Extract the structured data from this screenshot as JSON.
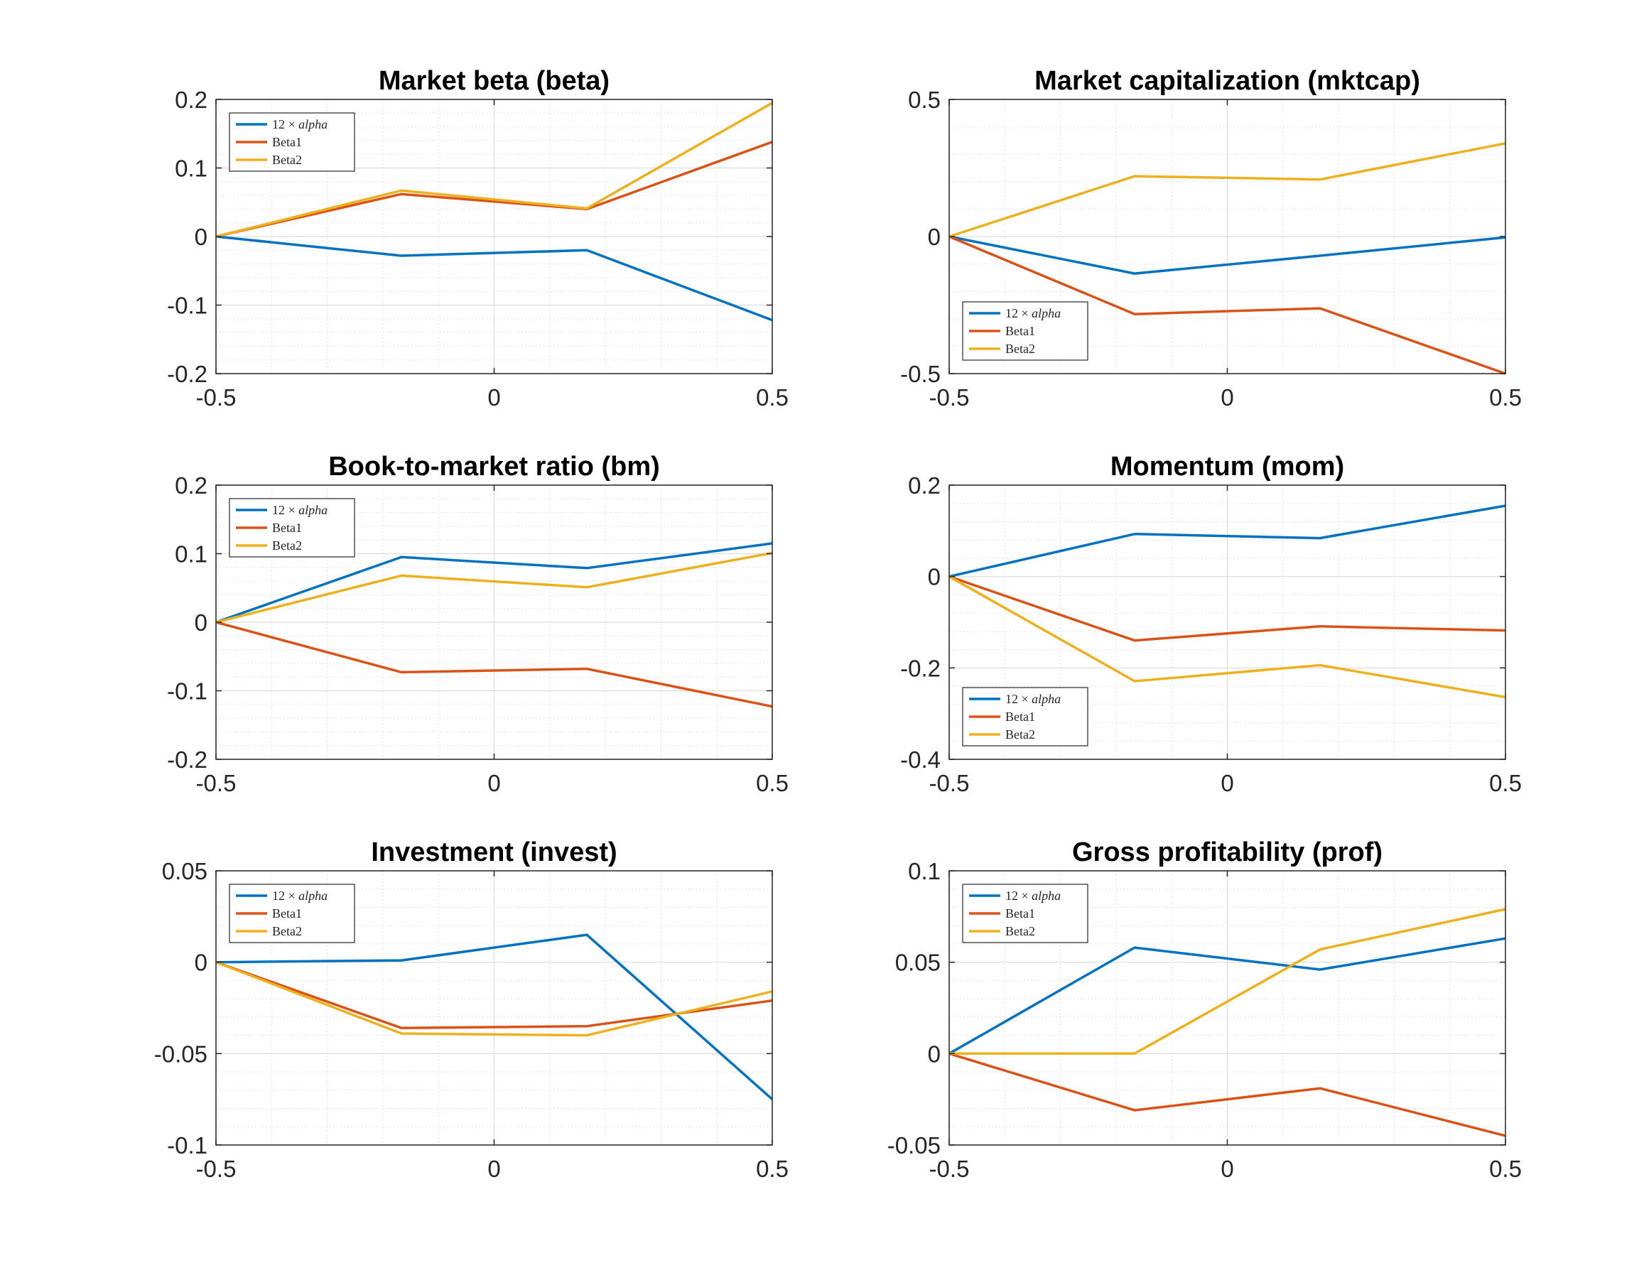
{
  "colors": {
    "alpha": "#0072BD",
    "beta1": "#D95319",
    "beta2": "#EDB120"
  },
  "legend": {
    "entries": [
      {
        "prefix": "12 × ",
        "italic": "alpha",
        "key": "alpha"
      },
      {
        "prefix": "Beta1",
        "italic": "",
        "key": "beta1"
      },
      {
        "prefix": "Beta2",
        "italic": "",
        "key": "beta2"
      }
    ]
  },
  "chart_data": [
    {
      "type": "line",
      "title": "Market beta (beta)",
      "x": [
        -0.5,
        -0.1667,
        0.1667,
        0.5
      ],
      "xlim": [
        -0.5,
        0.5
      ],
      "xticks": [
        -0.5,
        0,
        0.5
      ],
      "xtick_labels": [
        "-0.5",
        "0",
        "0.5"
      ],
      "ylim": [
        -0.2,
        0.2
      ],
      "yticks": [
        -0.2,
        -0.1,
        0,
        0.1,
        0.2
      ],
      "ytick_labels": [
        "-0.2",
        "-0.1",
        "0",
        "0.1",
        "0.2"
      ],
      "legend_position": "top-left",
      "grid": true,
      "series": [
        {
          "name": "12 × alpha",
          "key": "alpha",
          "values": [
            0,
            -0.028,
            -0.02,
            -0.122
          ]
        },
        {
          "name": "Beta1",
          "key": "beta1",
          "values": [
            0,
            0.062,
            0.04,
            0.138
          ]
        },
        {
          "name": "Beta2",
          "key": "beta2",
          "values": [
            0,
            0.067,
            0.041,
            0.195
          ]
        }
      ]
    },
    {
      "type": "line",
      "title": "Market capitalization (mktcap)",
      "x": [
        -0.5,
        -0.1667,
        0.1667,
        0.5
      ],
      "xlim": [
        -0.5,
        0.5
      ],
      "xticks": [
        -0.5,
        0,
        0.5
      ],
      "xtick_labels": [
        "-0.5",
        "0",
        "0.5"
      ],
      "ylim": [
        -0.5,
        0.5
      ],
      "yticks": [
        -0.5,
        0,
        0.5
      ],
      "ytick_labels": [
        "-0.5",
        "0",
        "0.5"
      ],
      "legend_position": "bottom-left",
      "grid": true,
      "series": [
        {
          "name": "12 × alpha",
          "key": "alpha",
          "values": [
            0,
            -0.135,
            -0.07,
            -0.003
          ]
        },
        {
          "name": "Beta1",
          "key": "beta1",
          "values": [
            0,
            -0.283,
            -0.262,
            -0.5
          ]
        },
        {
          "name": "Beta2",
          "key": "beta2",
          "values": [
            0,
            0.22,
            0.208,
            0.34
          ]
        }
      ]
    },
    {
      "type": "line",
      "title": "Book-to-market ratio (bm)",
      "x": [
        -0.5,
        -0.1667,
        0.1667,
        0.5
      ],
      "xlim": [
        -0.5,
        0.5
      ],
      "xticks": [
        -0.5,
        0,
        0.5
      ],
      "xtick_labels": [
        "-0.5",
        "0",
        "0.5"
      ],
      "ylim": [
        -0.2,
        0.2
      ],
      "yticks": [
        -0.2,
        -0.1,
        0,
        0.1,
        0.2
      ],
      "ytick_labels": [
        "-0.2",
        "-0.1",
        "0",
        "0.1",
        "0.2"
      ],
      "legend_position": "top-left",
      "grid": true,
      "series": [
        {
          "name": "12 × alpha",
          "key": "alpha",
          "values": [
            0,
            0.095,
            0.079,
            0.115
          ]
        },
        {
          "name": "Beta1",
          "key": "beta1",
          "values": [
            0,
            -0.073,
            -0.068,
            -0.123
          ]
        },
        {
          "name": "Beta2",
          "key": "beta2",
          "values": [
            0,
            0.068,
            0.051,
            0.101
          ]
        }
      ]
    },
    {
      "type": "line",
      "title": "Momentum (mom)",
      "x": [
        -0.5,
        -0.1667,
        0.1667,
        0.5
      ],
      "xlim": [
        -0.5,
        0.5
      ],
      "xticks": [
        -0.5,
        0,
        0.5
      ],
      "xtick_labels": [
        "-0.5",
        "0",
        "0.5"
      ],
      "ylim": [
        -0.4,
        0.2
      ],
      "yticks": [
        -0.4,
        -0.2,
        0,
        0.2
      ],
      "ytick_labels": [
        "-0.4",
        "-0.2",
        "0",
        "0.2"
      ],
      "legend_position": "bottom-left",
      "grid": true,
      "series": [
        {
          "name": "12 × alpha",
          "key": "alpha",
          "values": [
            0,
            0.093,
            0.084,
            0.155
          ]
        },
        {
          "name": "Beta1",
          "key": "beta1",
          "values": [
            0,
            -0.14,
            -0.109,
            -0.118
          ]
        },
        {
          "name": "Beta2",
          "key": "beta2",
          "values": [
            0,
            -0.229,
            -0.194,
            -0.264
          ]
        }
      ]
    },
    {
      "type": "line",
      "title": "Investment (invest)",
      "x": [
        -0.5,
        -0.1667,
        0.1667,
        0.5
      ],
      "xlim": [
        -0.5,
        0.5
      ],
      "xticks": [
        -0.5,
        0,
        0.5
      ],
      "xtick_labels": [
        "-0.5",
        "0",
        "0.5"
      ],
      "ylim": [
        -0.1,
        0.05
      ],
      "yticks": [
        -0.1,
        -0.05,
        0,
        0.05
      ],
      "ytick_labels": [
        "-0.1",
        "-0.05",
        "0",
        "0.05"
      ],
      "legend_position": "top-left",
      "grid": true,
      "series": [
        {
          "name": "12 × alpha",
          "key": "alpha",
          "values": [
            0,
            0.001,
            0.015,
            -0.075
          ]
        },
        {
          "name": "Beta1",
          "key": "beta1",
          "values": [
            0,
            -0.036,
            -0.035,
            -0.021
          ]
        },
        {
          "name": "Beta2",
          "key": "beta2",
          "values": [
            0,
            -0.039,
            -0.04,
            -0.016
          ]
        }
      ]
    },
    {
      "type": "line",
      "title": "Gross profitability (prof)",
      "x": [
        -0.5,
        -0.1667,
        0.1667,
        0.5
      ],
      "xlim": [
        -0.5,
        0.5
      ],
      "xticks": [
        -0.5,
        0,
        0.5
      ],
      "xtick_labels": [
        "-0.5",
        "0",
        "0.5"
      ],
      "ylim": [
        -0.05,
        0.1
      ],
      "yticks": [
        -0.05,
        0,
        0.05,
        0.1
      ],
      "ytick_labels": [
        "-0.05",
        "0",
        "0.05",
        "0.1"
      ],
      "legend_position": "top-left",
      "grid": true,
      "series": [
        {
          "name": "12 × alpha",
          "key": "alpha",
          "values": [
            0,
            0.058,
            0.046,
            0.063
          ]
        },
        {
          "name": "Beta1",
          "key": "beta1",
          "values": [
            0,
            -0.031,
            -0.019,
            -0.045
          ]
        },
        {
          "name": "Beta2",
          "key": "beta2",
          "values": [
            0,
            0,
            0.057,
            0.079
          ]
        }
      ]
    }
  ]
}
